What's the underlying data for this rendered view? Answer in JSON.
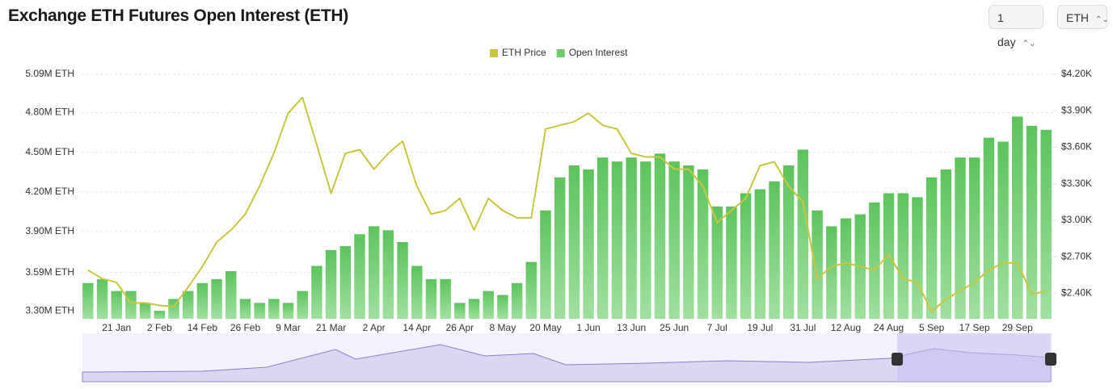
{
  "header": {
    "title": "Exchange ETH Futures Open Interest (ETH)",
    "controls": [
      "1 day",
      "ETH"
    ]
  },
  "chart_data": {
    "type": "bar",
    "grid": true,
    "legend": "top",
    "categories": [
      null,
      null,
      "21 Jan",
      null,
      null,
      "2 Feb",
      null,
      null,
      "14 Feb",
      null,
      null,
      "26 Feb",
      null,
      null,
      "9 Mar",
      null,
      null,
      "21 Mar",
      null,
      null,
      "2 Apr",
      null,
      null,
      "14 Apr",
      null,
      null,
      "26 Apr",
      null,
      null,
      "8 May",
      null,
      null,
      "20 May",
      null,
      null,
      "1 Jun",
      null,
      null,
      "13 Jun",
      null,
      null,
      "25 Jun",
      null,
      null,
      "7 Jul",
      null,
      null,
      "19 Jul",
      null,
      null,
      "31 Jul",
      null,
      null,
      "12 Aug",
      null,
      null,
      "24 Aug",
      null,
      null,
      "5 Sep",
      null,
      null,
      "17 Sep",
      null,
      null,
      "29 Sep",
      null,
      null
    ],
    "ylim": [
      3240000,
      5090000
    ],
    "yticks": [
      {
        "value": 3300000,
        "label": "3.30M ETH"
      },
      {
        "value": 3590000,
        "label": "3.59M ETH"
      },
      {
        "value": 3900000,
        "label": "3.90M ETH"
      },
      {
        "value": 4200000,
        "label": "4.20M ETH"
      },
      {
        "value": 4500000,
        "label": "4.50M ETH"
      },
      {
        "value": 4800000,
        "label": "4.80M ETH"
      },
      {
        "value": 5090000,
        "label": "5.09M ETH"
      }
    ],
    "y2lim": [
      2190,
      4200
    ],
    "y2ticks": [
      {
        "value": 2400,
        "label": "$2.40K"
      },
      {
        "value": 2700,
        "label": "$2.70K"
      },
      {
        "value": 3000,
        "label": "$3.00K"
      },
      {
        "value": 3300,
        "label": "$3.30K"
      },
      {
        "value": 3600,
        "label": "$3.60K"
      },
      {
        "value": 3900,
        "label": "$3.90K"
      },
      {
        "value": 4200,
        "label": "$4.20K"
      }
    ],
    "series": [
      {
        "name": "ETH Price",
        "type": "line",
        "axis": "y2",
        "color": "#c9c63d",
        "values": [
          2590,
          2520,
          2490,
          2320,
          2320,
          2300,
          2290,
          2450,
          2620,
          2820,
          2920,
          3050,
          3280,
          3550,
          3880,
          4010,
          3620,
          3220,
          3550,
          3580,
          3420,
          3550,
          3650,
          3280,
          3050,
          3080,
          3180,
          2920,
          3180,
          3080,
          3020,
          3020,
          3750,
          3780,
          3810,
          3880,
          3780,
          3750,
          3550,
          3520,
          3520,
          3420,
          3420,
          3280,
          2980,
          3080,
          3180,
          3450,
          3480,
          3280,
          3150,
          2520,
          2620,
          2650,
          2620,
          2590,
          2720,
          2520,
          2490,
          2250,
          2350,
          2420,
          2490,
          2590,
          2650,
          2650,
          2390,
          2420
        ]
      },
      {
        "name": "Open Interest",
        "type": "bar",
        "color": "#6cc96c",
        "values": [
          3510000,
          3540000,
          3450000,
          3450000,
          3360000,
          3300000,
          3390000,
          3450000,
          3510000,
          3540000,
          3600000,
          3390000,
          3360000,
          3390000,
          3360000,
          3450000,
          3640000,
          3760000,
          3790000,
          3880000,
          3940000,
          3910000,
          3820000,
          3640000,
          3540000,
          3540000,
          3360000,
          3390000,
          3450000,
          3420000,
          3510000,
          3670000,
          4060000,
          4310000,
          4400000,
          4370000,
          4460000,
          4430000,
          4460000,
          4430000,
          4490000,
          4430000,
          4400000,
          4370000,
          4090000,
          4090000,
          4190000,
          4220000,
          4280000,
          4400000,
          4520000,
          4060000,
          3940000,
          4000000,
          4030000,
          4120000,
          4190000,
          4190000,
          4160000,
          4310000,
          4370000,
          4460000,
          4460000,
          4610000,
          4580000,
          4770000,
          4700000,
          4670000
        ]
      }
    ]
  }
}
